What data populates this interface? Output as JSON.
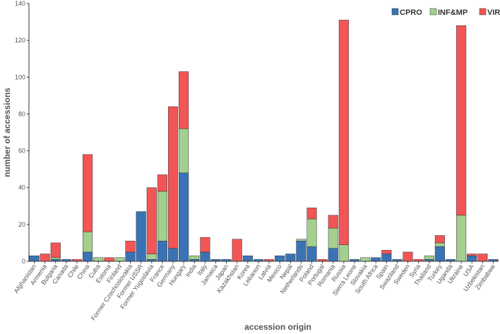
{
  "chart_data": {
    "type": "bar",
    "stacked": true,
    "title": "",
    "xlabel": "accession origin",
    "ylabel": "number of accessions",
    "ylim": [
      0,
      140
    ],
    "yticks": [
      0,
      20,
      40,
      60,
      80,
      100,
      120,
      140
    ],
    "legend_position": "top-right",
    "categories": [
      "Afghanistan",
      "Armenia",
      "Bulgaria",
      "Canada",
      "Chile",
      "China",
      "Cuba",
      "Estonia",
      "Finland",
      "Former Czechoslovakia",
      "Former USSR",
      "Former Yugoslavia",
      "France",
      "Germany",
      "Hungary",
      "India",
      "Italy",
      "Jamaica",
      "Japan",
      "Kazakhstan",
      "Korea",
      "Lebanon",
      "Latvia",
      "Mexico",
      "Nepal",
      "Netherlands",
      "Poland",
      "Portugal",
      "Romania",
      "Russia",
      "Sierra Leone",
      "Slovakia",
      "South Africa",
      "Spain",
      "Swaziland",
      "Sweden",
      "Syria",
      "Thailand",
      "Turkey",
      "Uganda",
      "Ukraine",
      "USA",
      "Uzbekistan",
      "Zimbabwe"
    ],
    "series": [
      {
        "name": "CPRO",
        "color": "#3a73b5",
        "values": [
          3,
          0,
          1,
          1,
          0,
          5,
          0,
          0,
          0,
          5,
          27,
          1,
          11,
          7,
          48,
          1,
          5,
          1,
          1,
          0,
          3,
          1,
          0,
          3,
          4,
          11,
          8,
          0,
          7,
          0,
          1,
          0,
          2,
          4,
          1,
          0,
          0,
          1,
          8,
          1,
          0,
          3,
          0,
          1
        ]
      },
      {
        "name": "INF&MP",
        "color": "#a3cf8f",
        "values": [
          0,
          0,
          1,
          0,
          0,
          11,
          2,
          0,
          2,
          0,
          0,
          3,
          27,
          0,
          24,
          2,
          0,
          0,
          0,
          0,
          0,
          0,
          0,
          0,
          0,
          1,
          15,
          0,
          11,
          9,
          0,
          2,
          0,
          0,
          0,
          0,
          0,
          2,
          2,
          0,
          25,
          0,
          0,
          0
        ]
      },
      {
        "name": "VIR",
        "color": "#f25555",
        "values": [
          0,
          4,
          8,
          0,
          1,
          42,
          0,
          2,
          0,
          6,
          0,
          36,
          9,
          77,
          31,
          0,
          8,
          0,
          0,
          12,
          0,
          0,
          1,
          0,
          0,
          0,
          6,
          1,
          7,
          122,
          0,
          0,
          0,
          2,
          0,
          5,
          1,
          0,
          4,
          0,
          103,
          1,
          4,
          0
        ]
      }
    ]
  }
}
